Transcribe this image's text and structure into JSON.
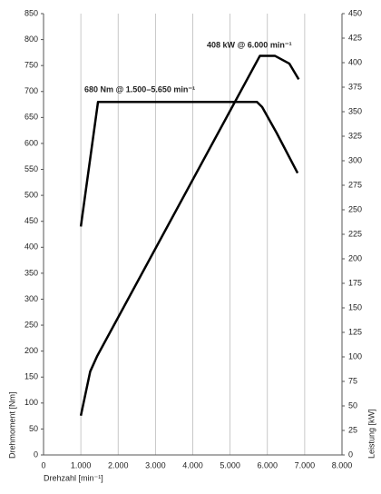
{
  "chart_data": {
    "type": "line",
    "xlabel": "Drehzahl [min⁻¹]",
    "ylabel": "Drehmoment [Nm]",
    "y2label": "Leistung [kW]",
    "annotations": [
      "408 kW @ 6.000 min⁻¹",
      "680 Nm @ 1.500–5.650 min⁻¹"
    ],
    "series": [
      {
        "color": "#000000",
        "x": [
          1000,
          1460,
          5720,
          5860,
          6250,
          6810
        ],
        "values": [
          440,
          680,
          680,
          670,
          620,
          543
        ]
      },
      {
        "color": "#000000",
        "axis": "y2",
        "x": [
          1000,
          1250,
          1440,
          5800,
          6200,
          6590,
          6840
        ],
        "values": [
          40,
          85,
          101,
          407,
          407,
          399,
          383
        ]
      }
    ],
    "xlim": [
      0,
      8000
    ],
    "xticks": [
      0,
      {
        "value": 1000,
        "label": "1.000"
      },
      {
        "value": 2000,
        "label": "2.000"
      },
      {
        "value": 3000,
        "label": "3.000"
      },
      {
        "value": 4000,
        "label": "4.000"
      },
      {
        "value": 5000,
        "label": "5.000"
      },
      {
        "value": 6000,
        "label": "6.000"
      },
      {
        "value": 7000,
        "label": "7.000"
      },
      {
        "value": 8000,
        "label": "8.000"
      }
    ],
    "ylim": [
      0,
      850
    ],
    "yticks": [
      0,
      50,
      100,
      150,
      200,
      250,
      300,
      350,
      400,
      450,
      500,
      550,
      600,
      650,
      700,
      750,
      800,
      850
    ],
    "y2lim": [
      0,
      450
    ],
    "y2ticks": [
      0,
      25,
      50,
      75,
      100,
      125,
      150,
      175,
      200,
      225,
      250,
      275,
      300,
      325,
      350,
      375,
      400,
      425,
      450
    ],
    "grid": true
  }
}
